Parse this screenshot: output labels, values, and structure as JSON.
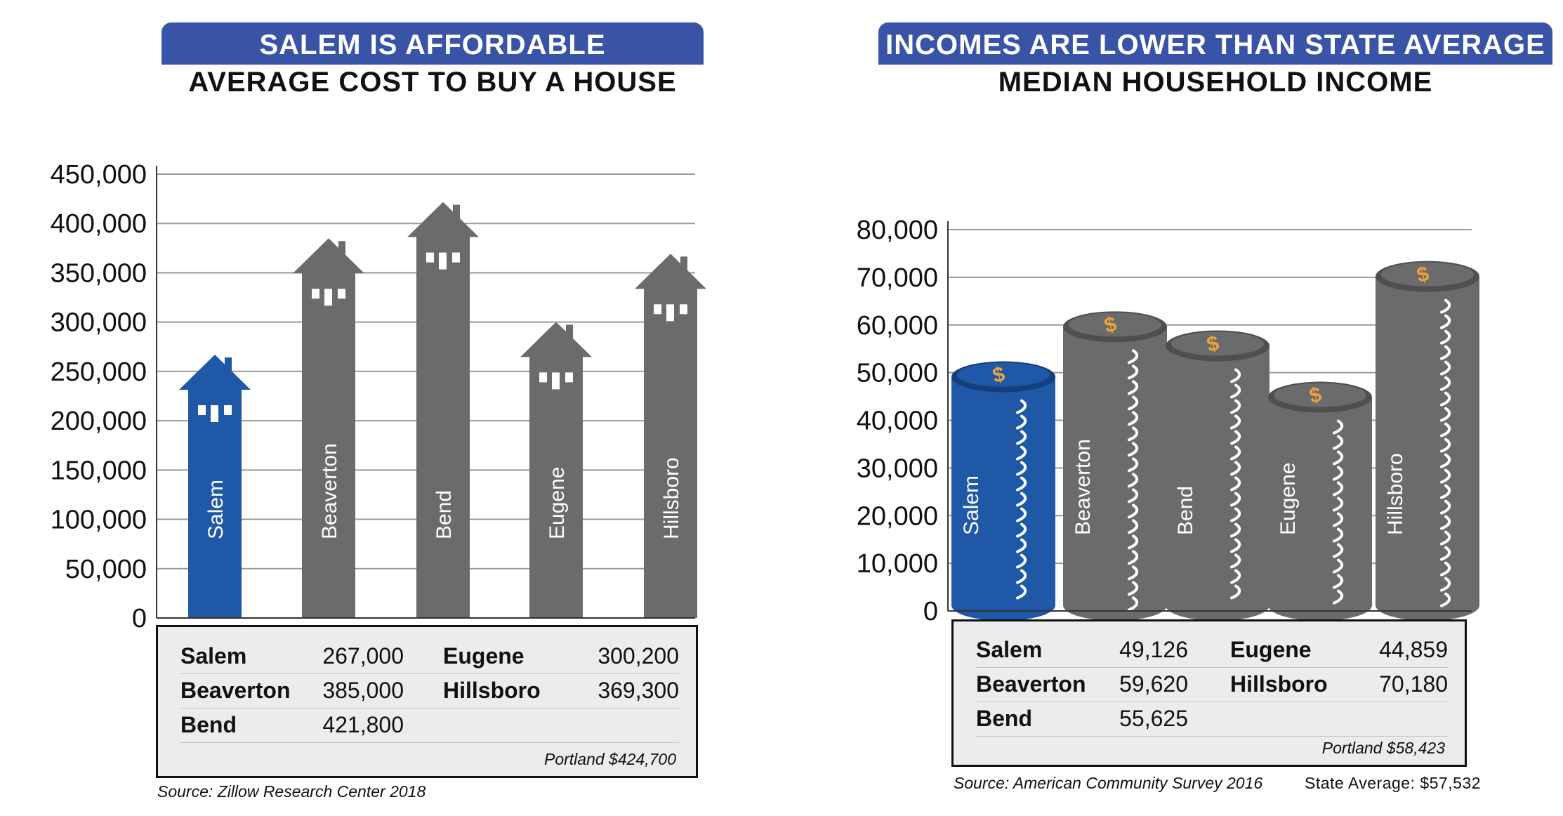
{
  "colors": {
    "accent": "#1f58a6",
    "bar": "#6b6b6e",
    "banner": "#3954a6",
    "coin_symbol": "#eaa33a"
  },
  "icons": {
    "house": "house-icon",
    "coin": "dollar-coin-icon"
  },
  "left": {
    "banner": "SALEM IS AFFORDABLE",
    "subtitle": "AVERAGE COST TO BUY A HOUSE",
    "source": "Source: Zillow Research Center 2018",
    "summary": {
      "rows": [
        [
          {
            "name": "Salem",
            "value": "267,000"
          },
          {
            "name": "Eugene",
            "value": "300,200"
          }
        ],
        [
          {
            "name": "Beaverton",
            "value": "385,000"
          },
          {
            "name": "Hillsboro",
            "value": "369,300"
          }
        ],
        [
          {
            "name": "Bend",
            "value": "421,800"
          }
        ]
      ],
      "footnote": "Portland $424,700"
    }
  },
  "right": {
    "banner": "INCOMES ARE LOWER THAN STATE AVERAGE",
    "subtitle": "MEDIAN HOUSEHOLD INCOME",
    "source": "Source: American Community Survey 2016",
    "state_average": "State Average: $57,532",
    "summary": {
      "rows": [
        [
          {
            "name": "Salem",
            "value": "49,126"
          },
          {
            "name": "Eugene",
            "value": "44,859"
          }
        ],
        [
          {
            "name": "Beaverton",
            "value": "59,620"
          },
          {
            "name": "Hillsboro",
            "value": "70,180"
          }
        ],
        [
          {
            "name": "Bend",
            "value": "55,625"
          }
        ]
      ],
      "footnote": "Portland $58,423"
    }
  },
  "chart_data": [
    {
      "type": "bar",
      "title": "AVERAGE COST TO BUY A HOUSE",
      "categories": [
        "Salem",
        "Beaverton",
        "Bend",
        "Eugene",
        "Hillsboro"
      ],
      "values": [
        267000,
        385000,
        421800,
        300200,
        369300
      ],
      "highlight": "Salem",
      "ylim": [
        0,
        450000
      ],
      "yticks": [
        0,
        50000,
        100000,
        150000,
        200000,
        250000,
        300000,
        350000,
        400000,
        450000
      ],
      "ytick_labels": [
        "0",
        "50,000",
        "100,000",
        "150,000",
        "200,000",
        "250,000",
        "300,000",
        "350,000",
        "400,000",
        "450,000"
      ],
      "grid": true,
      "xlabel": "",
      "ylabel": ""
    },
    {
      "type": "bar",
      "title": "MEDIAN HOUSEHOLD INCOME",
      "categories": [
        "Salem",
        "Beaverton",
        "Bend",
        "Eugene",
        "Hillsboro"
      ],
      "values": [
        49126,
        59620,
        55625,
        44859,
        70180
      ],
      "highlight": "Salem",
      "ylim": [
        0,
        80000
      ],
      "yticks": [
        0,
        10000,
        20000,
        30000,
        40000,
        50000,
        60000,
        70000,
        80000
      ],
      "ytick_labels": [
        "0",
        "10,000",
        "20,000",
        "30,000",
        "40,000",
        "50,000",
        "60,000",
        "70,000",
        "80,000"
      ],
      "grid": true,
      "xlabel": "",
      "ylabel": ""
    }
  ]
}
